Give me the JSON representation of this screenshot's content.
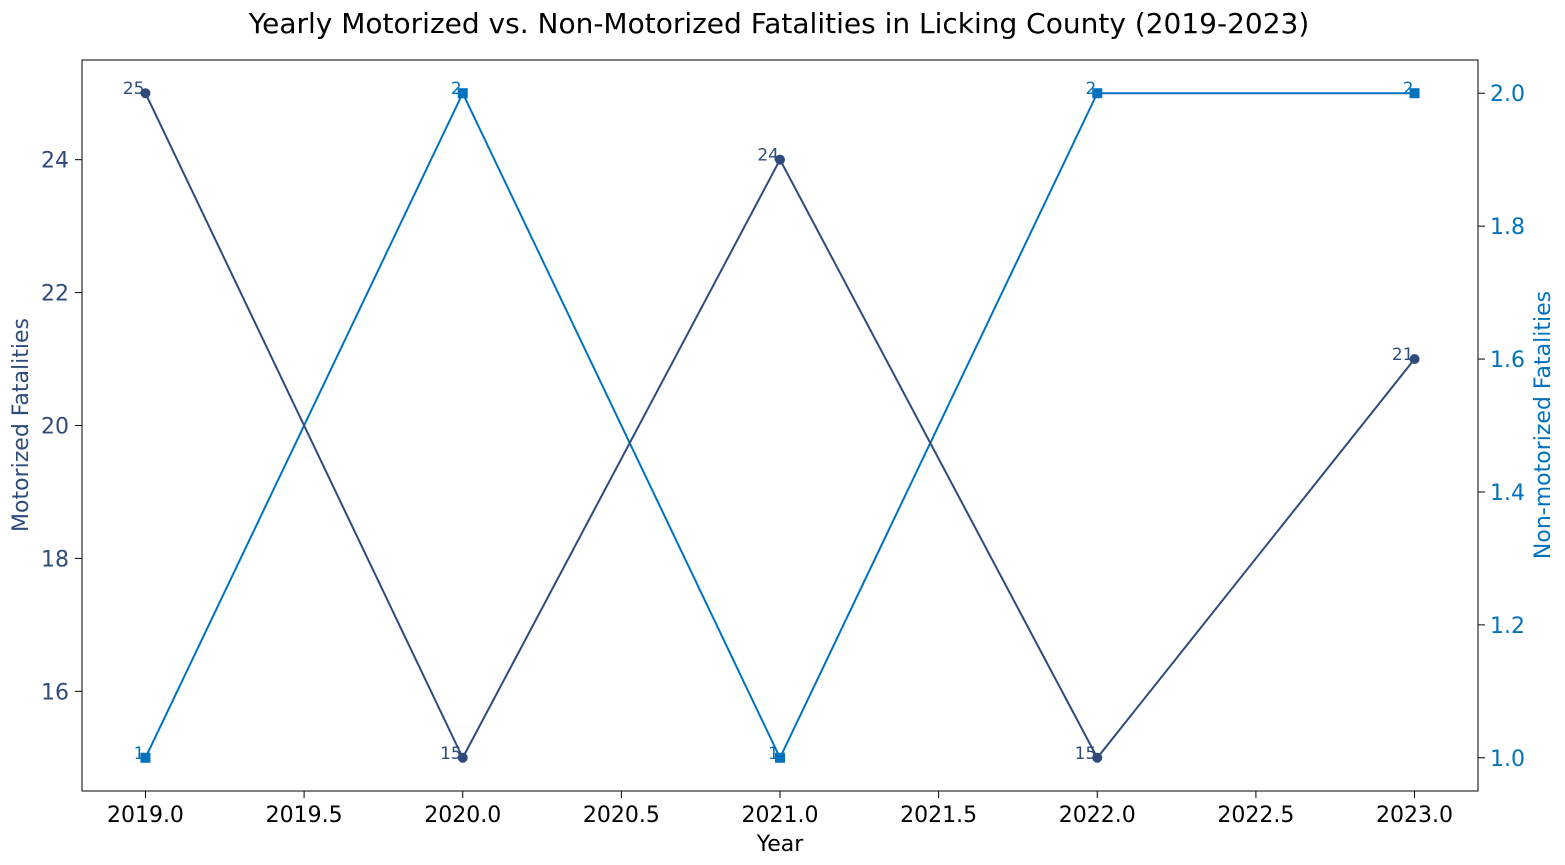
{
  "chart_data": {
    "type": "line",
    "title": "Yearly Motorized vs. Non-Motorized Fatalities in Licking County (2019-2023)",
    "xlabel": "Year",
    "ylabel_left": "Motorized Fatalities",
    "ylabel_right": "Non-motorized Fatalities",
    "x": [
      2019,
      2020,
      2021,
      2022,
      2023
    ],
    "x_ticks": [
      "2019.0",
      "2019.5",
      "2020.0",
      "2020.5",
      "2021.0",
      "2021.5",
      "2022.0",
      "2022.5",
      "2023.0"
    ],
    "xlim": [
      2018.8,
      2023.2
    ],
    "y_left_ticks": [
      "16",
      "18",
      "20",
      "22",
      "24"
    ],
    "ylim_left": [
      14.5,
      25.5
    ],
    "y_right_ticks": [
      "1.0",
      "1.2",
      "1.4",
      "1.6",
      "1.8",
      "2.0"
    ],
    "ylim_right": [
      0.95,
      2.05
    ],
    "grid": false,
    "series": [
      {
        "axis": "left",
        "values": [
          25,
          15,
          24,
          15,
          21
        ],
        "labels": [
          "25",
          "15",
          "24",
          "15",
          "21"
        ],
        "color": "#2f4b7c",
        "marker": "circle"
      },
      {
        "axis": "right",
        "values": [
          1,
          2,
          1,
          2,
          2
        ],
        "labels": [
          "1",
          "2",
          "1",
          "2",
          "2"
        ],
        "color": "#0072bd",
        "marker": "square"
      }
    ]
  }
}
